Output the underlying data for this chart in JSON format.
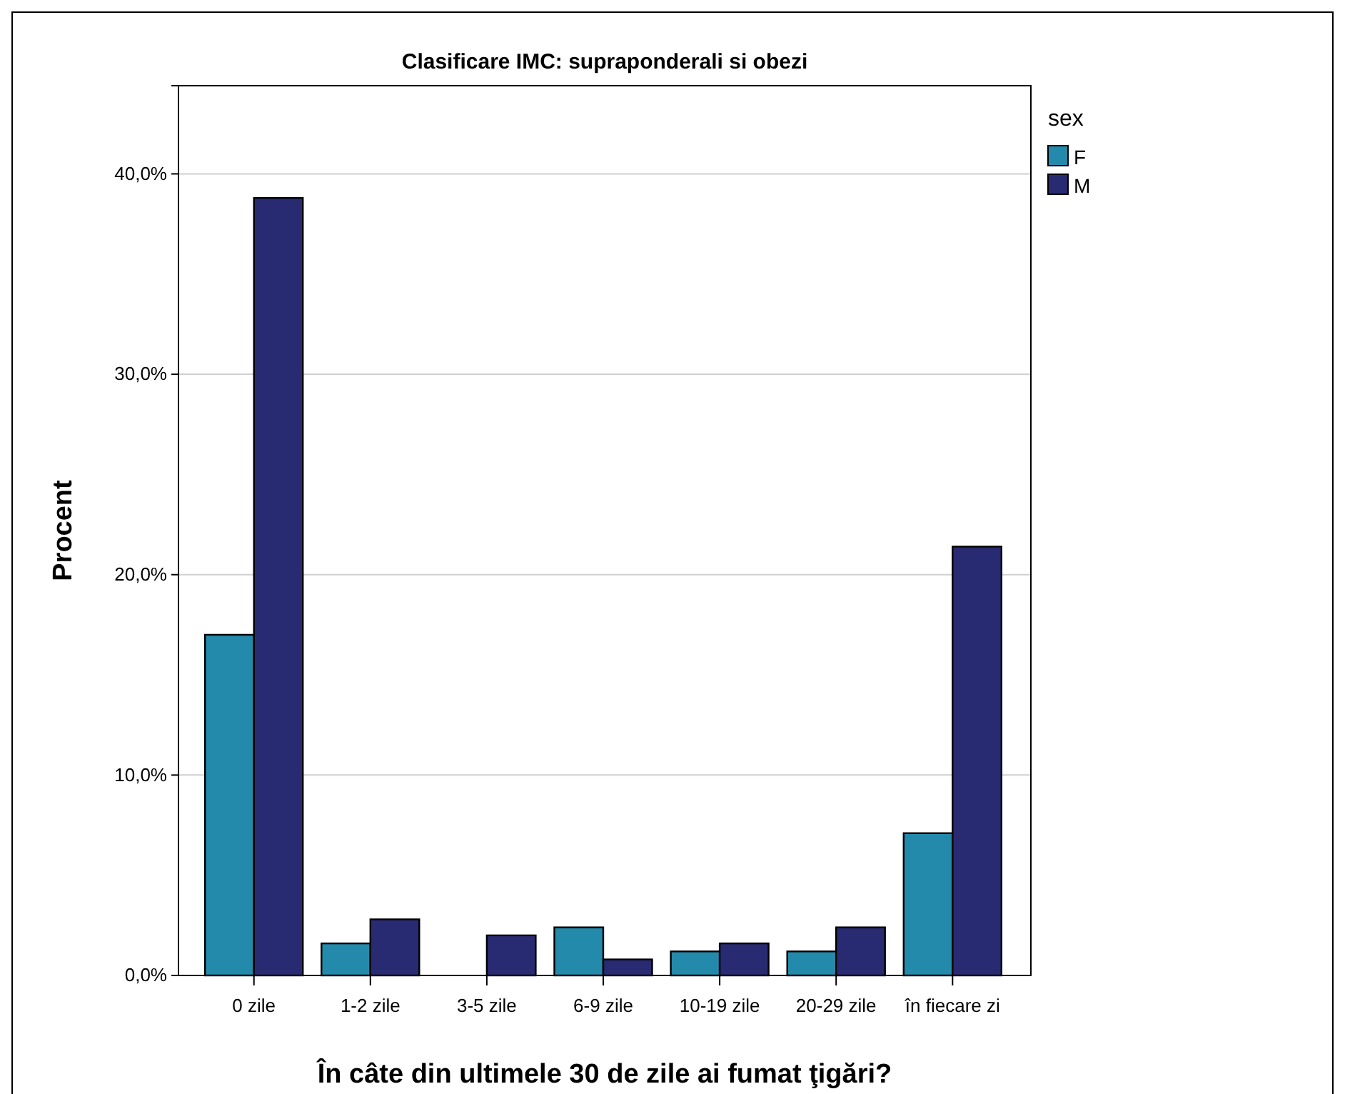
{
  "chart_data": {
    "type": "bar",
    "title": "Clasificare IMC: supraponderali si obezi",
    "xlabel": "În câte din ultimele 30 de zile ai fumat ţigări?",
    "ylabel": "Procent",
    "legend_title": "sex",
    "categories": [
      "0 zile",
      "1-2 zile",
      "3-5 zile",
      "6-9 zile",
      "10-19 zile",
      "20-29 zile",
      "în fiecare zi"
    ],
    "series": [
      {
        "name": "F",
        "color": "#248aab",
        "values": [
          17.0,
          1.6,
          0,
          2.4,
          1.2,
          1.2,
          7.1
        ]
      },
      {
        "name": "M",
        "color": "#282a72",
        "values": [
          38.8,
          2.8,
          2.0,
          0.8,
          1.6,
          2.4,
          21.4
        ]
      }
    ],
    "ylim": [
      0,
      44.4
    ],
    "yticks": [
      {
        "value": 0,
        "label": "0,0%"
      },
      {
        "value": 10,
        "label": "10,0%"
      },
      {
        "value": 20,
        "label": "20,0%"
      },
      {
        "value": 30,
        "label": "30,0%"
      },
      {
        "value": 40,
        "label": "40,0%"
      }
    ],
    "grid": "y",
    "legend": "top right"
  }
}
